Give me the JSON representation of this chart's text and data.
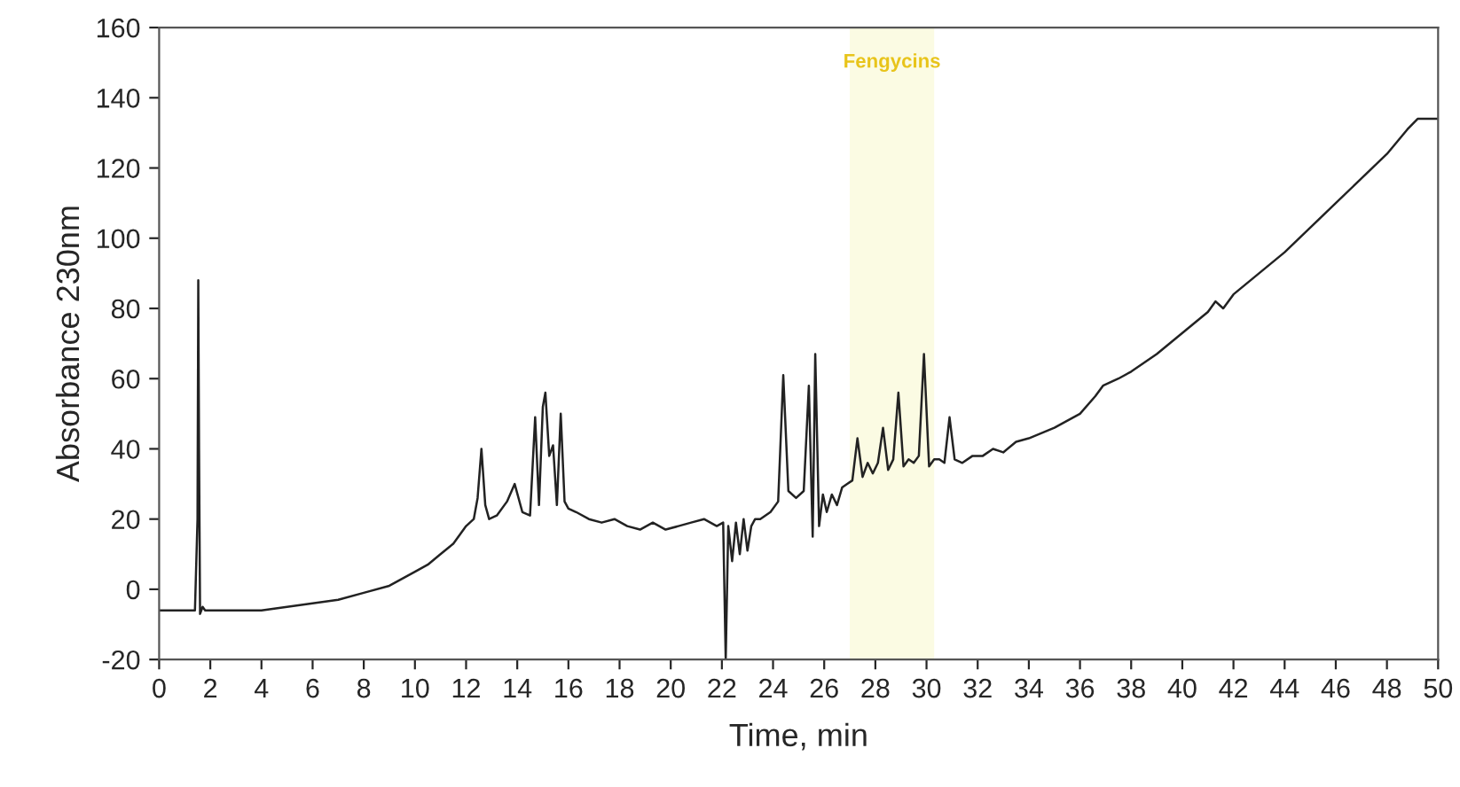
{
  "chart_data": {
    "type": "line",
    "xlabel": "Time, min",
    "ylabel": "Absorbance 230nm",
    "xlim": [
      0,
      50
    ],
    "xticks": [
      0,
      2,
      4,
      6,
      8,
      10,
      12,
      14,
      16,
      18,
      20,
      22,
      24,
      26,
      28,
      30,
      32,
      34,
      36,
      38,
      40,
      42,
      44,
      46,
      48,
      50
    ],
    "ylim": [
      -20,
      160
    ],
    "yticks": [
      -20,
      0,
      20,
      40,
      60,
      80,
      100,
      120,
      140,
      160
    ],
    "grid": false,
    "legend": false,
    "bands": [
      {
        "axis": "x",
        "from": 27.0,
        "to": 30.3,
        "label": "Fengycins",
        "color": "#fbfbe3"
      }
    ],
    "series": [
      {
        "color": "#222222",
        "x": [
          0,
          1.0,
          1.4,
          1.5,
          1.53,
          1.56,
          1.6,
          1.7,
          1.8,
          2.5,
          4,
          6,
          7,
          8,
          9,
          10,
          10.5,
          11,
          11.5,
          12,
          12.3,
          12.45,
          12.6,
          12.75,
          12.9,
          13.2,
          13.6,
          13.9,
          14.2,
          14.5,
          14.7,
          14.85,
          15.0,
          15.1,
          15.25,
          15.4,
          15.55,
          15.7,
          15.85,
          16.0,
          16.3,
          16.8,
          17.3,
          17.8,
          18.3,
          18.8,
          19.3,
          19.8,
          20.3,
          20.8,
          21.3,
          21.8,
          22.05,
          22.15,
          22.25,
          22.4,
          22.55,
          22.7,
          22.85,
          23.0,
          23.15,
          23.3,
          23.5,
          23.9,
          24.2,
          24.4,
          24.6,
          24.9,
          25.2,
          25.4,
          25.55,
          25.65,
          25.8,
          25.95,
          26.1,
          26.3,
          26.5,
          26.7,
          26.9,
          27.1,
          27.3,
          27.5,
          27.7,
          27.9,
          28.1,
          28.3,
          28.5,
          28.7,
          28.9,
          29.1,
          29.3,
          29.5,
          29.7,
          29.9,
          30.1,
          30.3,
          30.5,
          30.7,
          30.9,
          31.1,
          31.4,
          31.8,
          32.2,
          32.6,
          33.0,
          33.5,
          34.0,
          35.0,
          36.0,
          36.6,
          36.9,
          37.5,
          38.0,
          39.0,
          40.0,
          41.0,
          41.3,
          41.6,
          42.0,
          43.0,
          44.0,
          45.0,
          46.0,
          47.0,
          48.0,
          48.8,
          49.2,
          50.0
        ],
        "values": [
          -6,
          -6,
          -6,
          20,
          88,
          40,
          -7,
          -5,
          -6,
          -6,
          -6,
          -4,
          -3,
          -1,
          1,
          5,
          7,
          10,
          13,
          18,
          20,
          26,
          40,
          24,
          20,
          21,
          25,
          30,
          22,
          21,
          49,
          24,
          52,
          56,
          38,
          41,
          24,
          50,
          25,
          23,
          22,
          20,
          19,
          20,
          18,
          17,
          19,
          17,
          18,
          19,
          20,
          18,
          19,
          -20,
          18,
          8,
          19,
          10,
          20,
          11,
          18,
          20,
          20,
          22,
          25,
          61,
          28,
          26,
          28,
          58,
          15,
          67,
          18,
          27,
          22,
          27,
          24,
          29,
          30,
          31,
          43,
          32,
          36,
          33,
          36,
          46,
          34,
          37,
          56,
          35,
          37,
          36,
          38,
          67,
          35,
          37,
          37,
          36,
          49,
          37,
          36,
          38,
          38,
          40,
          39,
          42,
          43,
          46,
          50,
          55,
          58,
          60,
          62,
          67,
          73,
          79,
          82,
          80,
          84,
          90,
          96,
          103,
          110,
          117,
          124,
          131,
          134,
          134
        ]
      }
    ]
  }
}
